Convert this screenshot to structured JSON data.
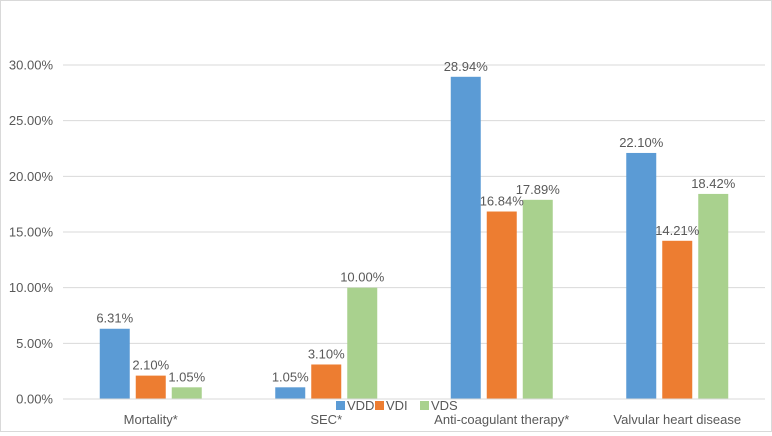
{
  "chart_data": {
    "type": "bar",
    "title": "",
    "xlabel": "",
    "ylabel": "",
    "categories": [
      "Mortality*",
      "SEC*",
      "Anti-coagulant therapy*",
      "Valvular heart disease"
    ],
    "series": [
      {
        "name": "VDD",
        "color": "#5b9bd5",
        "values": [
          6.31,
          1.05,
          28.94,
          22.1
        ],
        "labels": [
          "6.31%",
          "1.05%",
          "28.94%",
          "22.10%"
        ]
      },
      {
        "name": "VDI",
        "color": "#ed7d31",
        "values": [
          2.1,
          3.1,
          16.84,
          14.21
        ],
        "labels": [
          "2.10%",
          "3.10%",
          "16.84%",
          "14.21%"
        ]
      },
      {
        "name": "VDS",
        "color": "#a9d18e",
        "values": [
          1.05,
          10.0,
          17.89,
          18.42
        ],
        "labels": [
          "1.05%",
          "10.00%",
          "17.89%",
          "18.42%"
        ]
      }
    ],
    "ylim": [
      0,
      30
    ],
    "yticks": [
      0,
      5,
      10,
      15,
      20,
      25,
      30
    ],
    "ytick_labels": [
      "0.00%",
      "5.00%",
      "10.00%",
      "15.00%",
      "20.00%",
      "25.00%",
      "30.00%"
    ],
    "grid": true,
    "legend_position": "bottom-center"
  }
}
